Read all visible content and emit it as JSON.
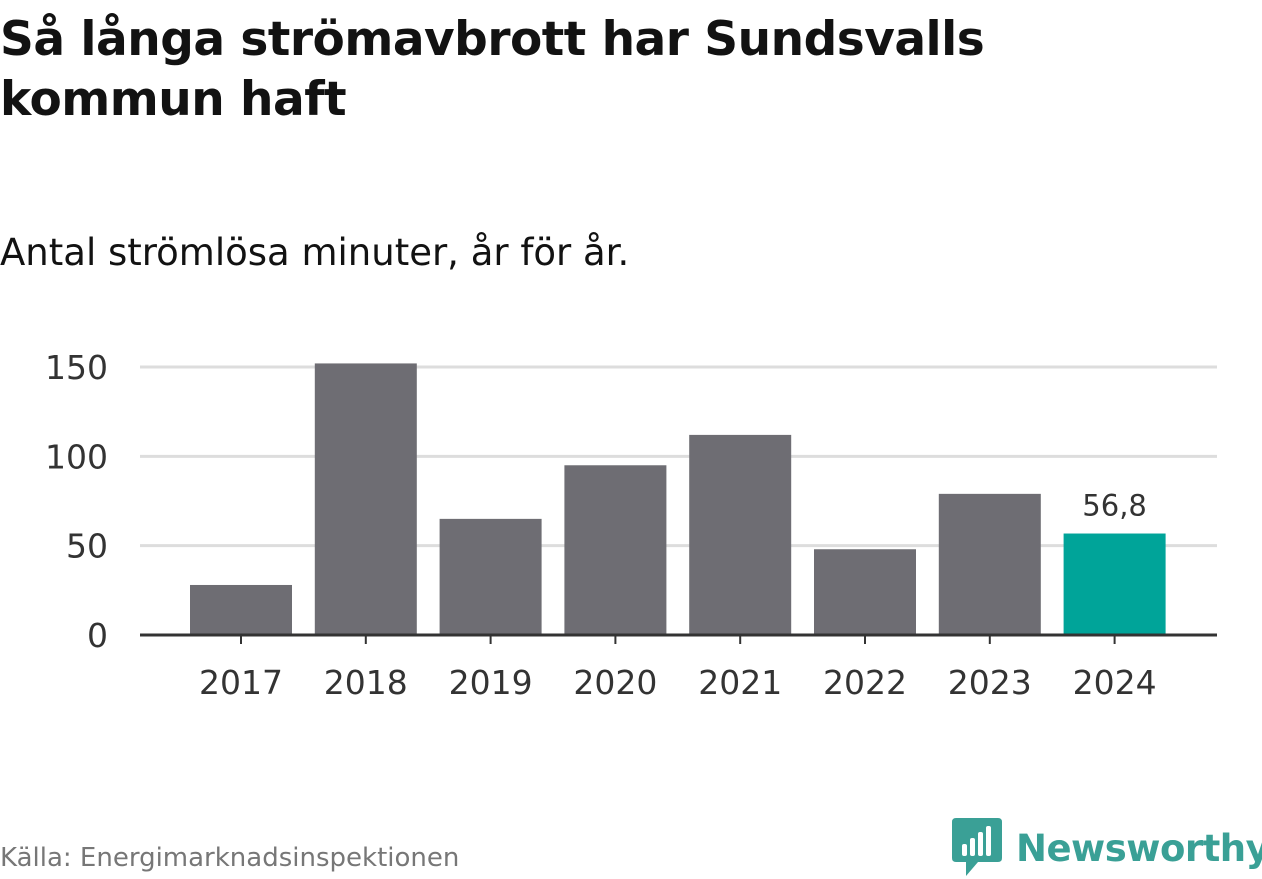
{
  "title": "Så långa strömavbrott har Sundsvalls kommun haft",
  "subtitle": "Antal strömlösa minuter, år för år.",
  "source": "Källa: Energimarknadsinspektionen",
  "brand": {
    "name": "Newsworthy",
    "icon": "newsworthy-logo-icon",
    "color": "#3aa096"
  },
  "colors": {
    "bar": "#6e6d73",
    "highlight": "#00a499",
    "grid": "#dddddd",
    "axis": "#333333",
    "tick_text": "#333333"
  },
  "chart_data": {
    "type": "bar",
    "title": "Så långa strömavbrott har Sundsvalls kommun haft",
    "subtitle": "Antal strömlösa minuter, år för år.",
    "xlabel": "",
    "ylabel": "",
    "categories": [
      "2017",
      "2018",
      "2019",
      "2020",
      "2021",
      "2022",
      "2023",
      "2024"
    ],
    "values": [
      28,
      152,
      65,
      95,
      112,
      48,
      79,
      56.8
    ],
    "highlight_index": 7,
    "data_labels": [
      {
        "index": 7,
        "text": "56,8"
      }
    ],
    "yticks": [
      0,
      50,
      100,
      150
    ],
    "ytick_labels": [
      "0",
      "50",
      "100",
      "150"
    ],
    "ylim": [
      0,
      150
    ],
    "grid": true,
    "legend": "none"
  }
}
